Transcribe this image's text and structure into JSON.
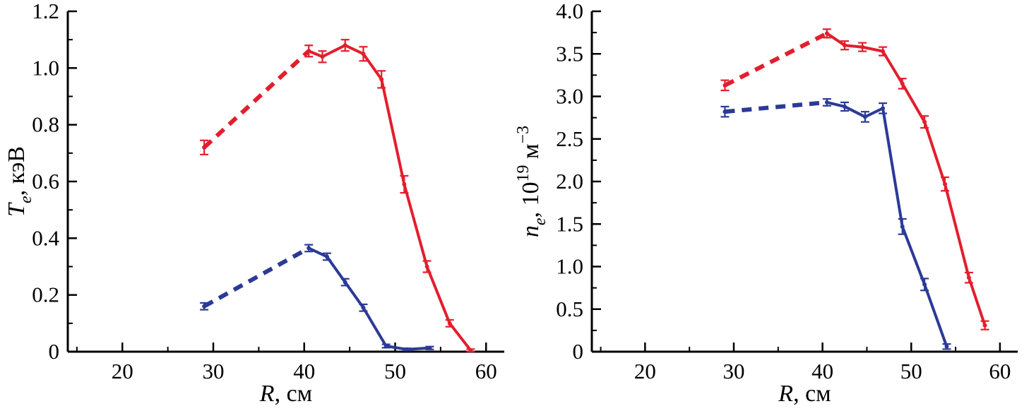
{
  "figure": {
    "background": "#ffffff",
    "axis_color": "#000000",
    "series_colors": {
      "red": "#e31e2d",
      "blue": "#2b3a97"
    }
  },
  "chart_data": [
    {
      "type": "line",
      "title": "",
      "xlabel": "R, см",
      "ylabel": "Te, кэВ",
      "xlabel_rich": [
        {
          "text": "R",
          "italic": true
        },
        {
          "text": ", см"
        }
      ],
      "ylabel_rich": [
        {
          "text": "T",
          "italic": true
        },
        {
          "text": "e",
          "italic": true,
          "baseline": "sub"
        },
        {
          "text": ", кэВ"
        }
      ],
      "xlim": [
        14,
        62
      ],
      "ylim": [
        0,
        1.2
      ],
      "xticks": [
        20,
        30,
        40,
        50,
        60
      ],
      "xtick_labels": [
        "20",
        "30",
        "40",
        "50",
        "60"
      ],
      "yticks": [
        0,
        0.2,
        0.4,
        0.6,
        0.8,
        1.0,
        1.2
      ],
      "ytick_labels": [
        "0",
        "0.2",
        "0.4",
        "0.6",
        "0.8",
        "1.0",
        "1.2"
      ],
      "x_minor_step": 5,
      "y_minor_step": 0.1,
      "grid": false,
      "legend": null,
      "series": [
        {
          "name": "Te-red-curve",
          "color": "red",
          "dash_until_index": 1,
          "x": [
            29,
            40.5,
            42,
            44.5,
            46.5,
            48.5,
            51,
            53.5,
            56,
            58.3
          ],
          "y": [
            0.72,
            1.06,
            1.04,
            1.08,
            1.05,
            0.96,
            0.59,
            0.3,
            0.1,
            0.005
          ],
          "yerr": [
            0.025,
            0.02,
            0.02,
            0.02,
            0.025,
            0.03,
            0.03,
            0.02,
            0.012,
            0.004
          ]
        },
        {
          "name": "Te-blue-curve",
          "color": "blue",
          "dash_until_index": 1,
          "x": [
            29,
            40.5,
            42.5,
            44.5,
            46.5,
            49,
            51.3,
            53.8
          ],
          "y": [
            0.16,
            0.365,
            0.335,
            0.245,
            0.155,
            0.02,
            0.008,
            0.013
          ],
          "yerr": [
            0.012,
            0.012,
            0.012,
            0.012,
            0.012,
            0.006,
            0.004,
            0.005
          ]
        }
      ]
    },
    {
      "type": "line",
      "title": "",
      "xlabel": "R, см",
      "ylabel": "ne, 10^19 м^-3",
      "xlabel_rich": [
        {
          "text": "R",
          "italic": true
        },
        {
          "text": ", см"
        }
      ],
      "ylabel_rich": [
        {
          "text": "n",
          "italic": true
        },
        {
          "text": "e",
          "italic": true,
          "baseline": "sub"
        },
        {
          "text": ", 10"
        },
        {
          "text": "19",
          "baseline": "sup"
        },
        {
          "text": " м"
        },
        {
          "text": "−3",
          "baseline": "sup"
        }
      ],
      "xlim": [
        14,
        62
      ],
      "ylim": [
        0,
        4.0
      ],
      "xticks": [
        20,
        30,
        40,
        50,
        60
      ],
      "xtick_labels": [
        "20",
        "30",
        "40",
        "50",
        "60"
      ],
      "yticks": [
        0,
        0.5,
        1.0,
        1.5,
        2.0,
        2.5,
        3.0,
        3.5,
        4.0
      ],
      "ytick_labels": [
        "0",
        "0.5",
        "1.0",
        "1.5",
        "2.0",
        "2.5",
        "3.0",
        "3.5",
        "4.0"
      ],
      "x_minor_step": 5,
      "y_minor_step": 0.25,
      "grid": false,
      "legend": null,
      "series": [
        {
          "name": "ne-red-curve",
          "color": "red",
          "dash_until_index": 1,
          "x": [
            29,
            40.5,
            42.5,
            44.5,
            46.8,
            49,
            51.5,
            53.8,
            56.5,
            58.3
          ],
          "y": [
            3.13,
            3.74,
            3.6,
            3.58,
            3.53,
            3.15,
            2.7,
            1.97,
            0.87,
            0.31
          ],
          "yerr": [
            0.06,
            0.05,
            0.05,
            0.05,
            0.05,
            0.06,
            0.07,
            0.08,
            0.06,
            0.05
          ]
        },
        {
          "name": "ne-blue-curve",
          "color": "blue",
          "dash_until_index": 1,
          "x": [
            29,
            40.5,
            42.5,
            44.8,
            46.8,
            49,
            51.5,
            54
          ],
          "y": [
            2.82,
            2.93,
            2.88,
            2.76,
            2.86,
            1.47,
            0.79,
            0.06
          ],
          "yerr": [
            0.06,
            0.04,
            0.05,
            0.06,
            0.06,
            0.09,
            0.07,
            0.03
          ]
        }
      ]
    }
  ]
}
